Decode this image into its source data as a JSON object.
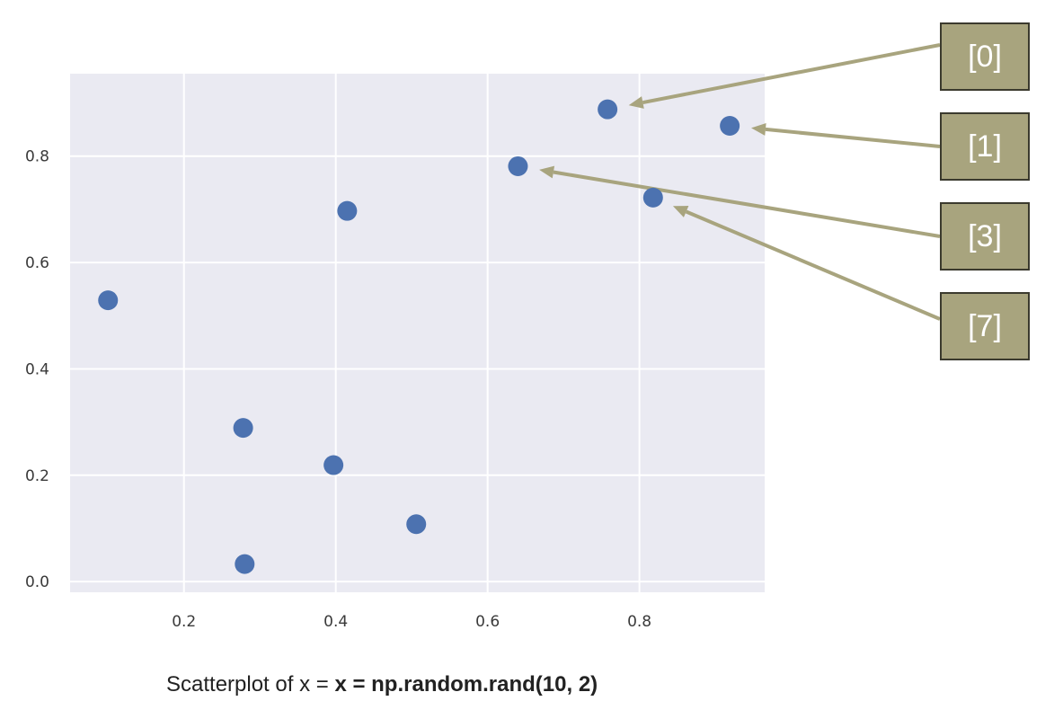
{
  "chart_data": {
    "type": "scatter",
    "title": "",
    "xlabel": "",
    "ylabel": "",
    "xlim": [
      0.05,
      0.965
    ],
    "ylim": [
      -0.02,
      0.955
    ],
    "grid": true,
    "xticks": [
      0.2,
      0.4,
      0.6,
      0.8
    ],
    "xtick_labels": [
      "0.2",
      "0.4",
      "0.6",
      "0.8"
    ],
    "yticks": [
      0.0,
      0.2,
      0.4,
      0.6,
      0.8
    ],
    "ytick_labels": [
      "0.0",
      "0.2",
      "0.4",
      "0.6",
      "0.8"
    ],
    "points": [
      {
        "x": 0.758,
        "y": 0.888
      },
      {
        "x": 0.919,
        "y": 0.857
      },
      {
        "x": 0.415,
        "y": 0.697
      },
      {
        "x": 0.64,
        "y": 0.781
      },
      {
        "x": 0.1,
        "y": 0.529
      },
      {
        "x": 0.278,
        "y": 0.289
      },
      {
        "x": 0.397,
        "y": 0.219
      },
      {
        "x": 0.818,
        "y": 0.722
      },
      {
        "x": 0.506,
        "y": 0.108
      },
      {
        "x": 0.28,
        "y": 0.033
      }
    ],
    "annotations": [
      {
        "label": "[0]",
        "point_index": 0
      },
      {
        "label": "[1]",
        "point_index": 1
      },
      {
        "label": "[3]",
        "point_index": 3
      },
      {
        "label": "[7]",
        "point_index": 7
      }
    ]
  },
  "caption": {
    "prefix": "Scatterplot of x = ",
    "code": "x = np.random.rand(10, 2)"
  },
  "colors": {
    "plot_background": "#eaeaf2",
    "grid": "#ffffff",
    "marker": "#4c72b0",
    "callout_fill": "#a8a47e",
    "callout_border": "#3b3a2e",
    "arrow": "#a8a47e"
  }
}
